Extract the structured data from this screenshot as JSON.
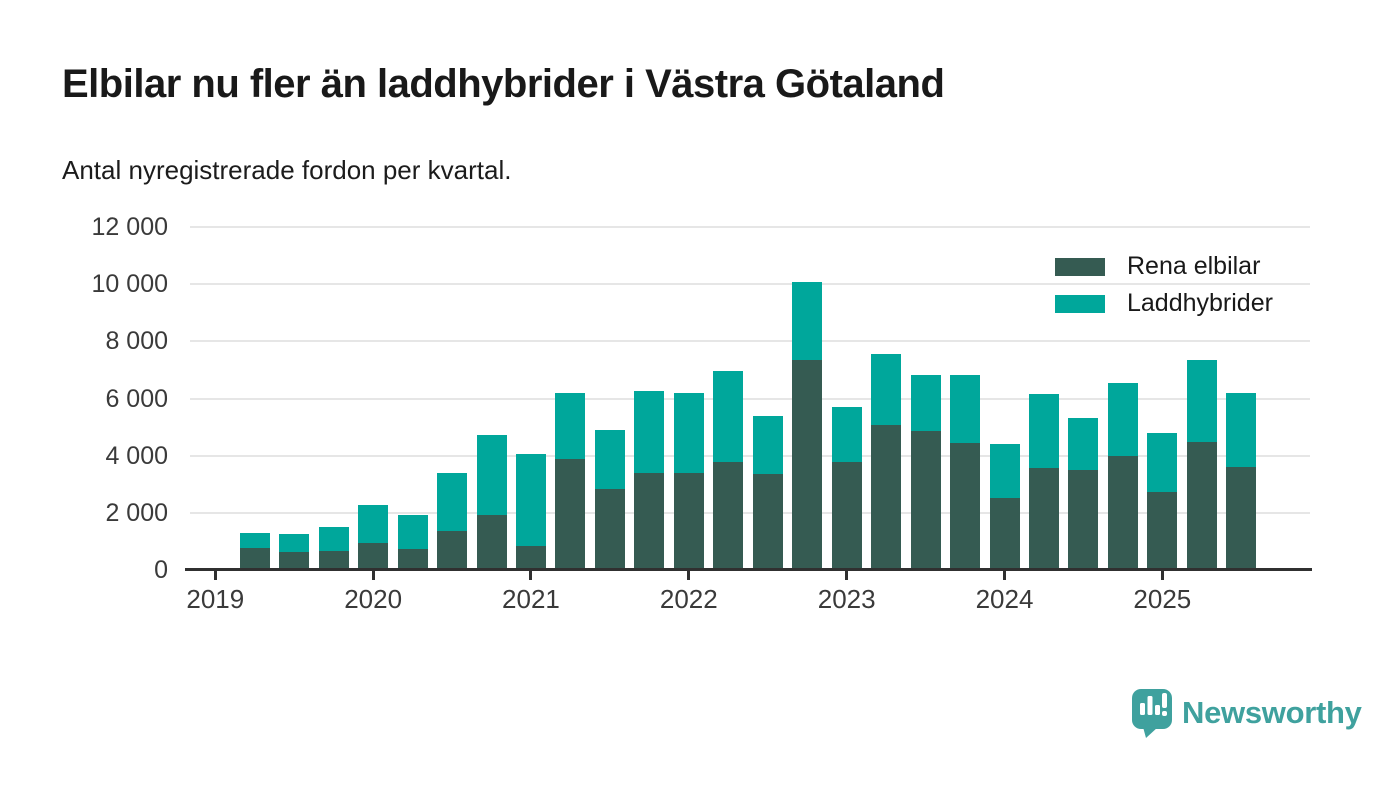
{
  "header": {
    "title": "Elbilar nu fler än laddhybrider i Västra Götaland",
    "subtitle": "Antal nyregistrerade fordon per kvartal."
  },
  "footer": {
    "brand": "Newsworthy",
    "brand_color": "#3FA19E",
    "icon": "newsworthy-speech-bubble-bar-chart-icon"
  },
  "chart_data": {
    "type": "bar",
    "stacked": true,
    "title": "Elbilar nu fler än laddhybrider i Västra Götaland",
    "subtitle": "Antal nyregistrerade fordon per kvartal.",
    "categories": [
      "2019Q2",
      "2019Q3",
      "2019Q4",
      "2020Q1",
      "2020Q2",
      "2020Q3",
      "2020Q4",
      "2021Q1",
      "2021Q2",
      "2021Q3",
      "2021Q4",
      "2022Q1",
      "2022Q2",
      "2022Q3",
      "2022Q4",
      "2023Q1",
      "2023Q2",
      "2023Q3",
      "2023Q4",
      "2024Q1",
      "2024Q2",
      "2024Q3",
      "2024Q4",
      "2025Q1",
      "2025Q2",
      "2025Q3"
    ],
    "series": [
      {
        "name": "Rena elbilar",
        "color": "#355B52",
        "values": [
          760,
          620,
          650,
          950,
          730,
          1350,
          1930,
          850,
          3890,
          2840,
          3400,
          3400,
          3780,
          3350,
          7360,
          3790,
          5060,
          4870,
          4450,
          2510,
          3560,
          3490,
          3990,
          2740,
          4480,
          3600
        ]
      },
      {
        "name": "Laddhybrider",
        "color": "#00A79B",
        "values": [
          550,
          640,
          850,
          1310,
          1200,
          2040,
          2810,
          3220,
          2310,
          2050,
          2860,
          2800,
          3170,
          2050,
          2700,
          1910,
          2500,
          1950,
          2370,
          1890,
          2590,
          1830,
          2560,
          2060,
          2870,
          2580
        ]
      }
    ],
    "ylim": [
      0,
      12000
    ],
    "yticks": [
      {
        "value": 0,
        "label": "0"
      },
      {
        "value": 2000,
        "label": "2 000"
      },
      {
        "value": 4000,
        "label": "4 000"
      },
      {
        "value": 6000,
        "label": "6 000"
      },
      {
        "value": 8000,
        "label": "8 000"
      },
      {
        "value": 10000,
        "label": "10 000"
      },
      {
        "value": 12000,
        "label": "12 000"
      }
    ],
    "year_labels": [
      "2019",
      "2020",
      "2021",
      "2022",
      "2023",
      "2024",
      "2025"
    ],
    "grid": "horizontal",
    "legend_position": "top-right"
  }
}
